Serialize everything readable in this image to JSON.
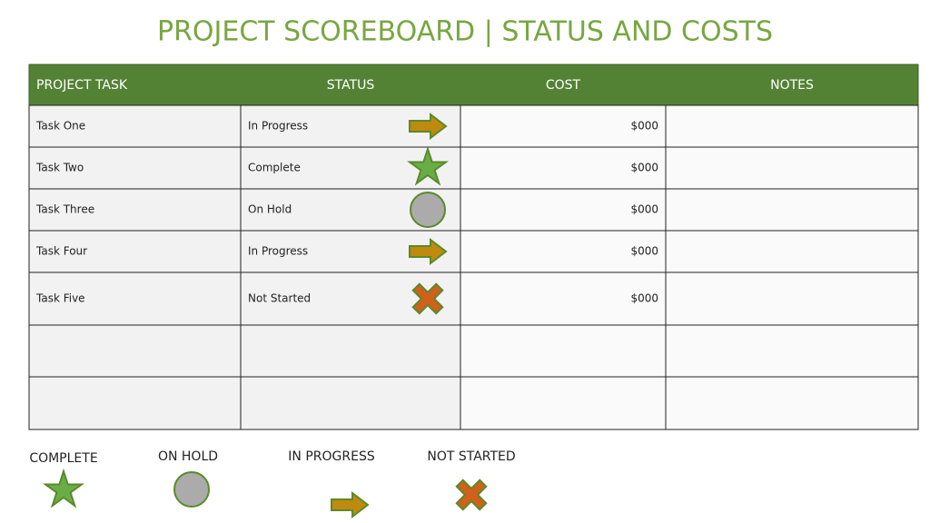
{
  "header": {
    "title": "PROJECT SCOREBOARD | STATUS AND COSTS"
  },
  "table": {
    "columns": [
      "PROJECT TASK",
      "STATUS",
      "COST",
      "NOTES"
    ],
    "rows": [
      {
        "task": "Task One",
        "status": "In Progress",
        "icon": "arrow",
        "cost": "$000"
      },
      {
        "task": "Task Two",
        "status": "Complete",
        "icon": "star",
        "cost": "$000"
      },
      {
        "task": "Task Three",
        "status": "On Hold",
        "icon": "circle",
        "cost": "$000"
      },
      {
        "task": "Task Four",
        "status": "In Progress",
        "icon": "arrow",
        "cost": "$000"
      },
      {
        "task": "Task Five",
        "status": "Not Started",
        "icon": "cross",
        "cost": "$000"
      }
    ]
  },
  "legend": [
    {
      "label": "COMPLETE",
      "icon": "star"
    },
    {
      "label": "ON HOLD",
      "icon": "circle"
    },
    {
      "label": "IN PROGRESS",
      "icon": "arrow"
    },
    {
      "label": "NOT STARTED",
      "icon": "cross"
    }
  ]
}
